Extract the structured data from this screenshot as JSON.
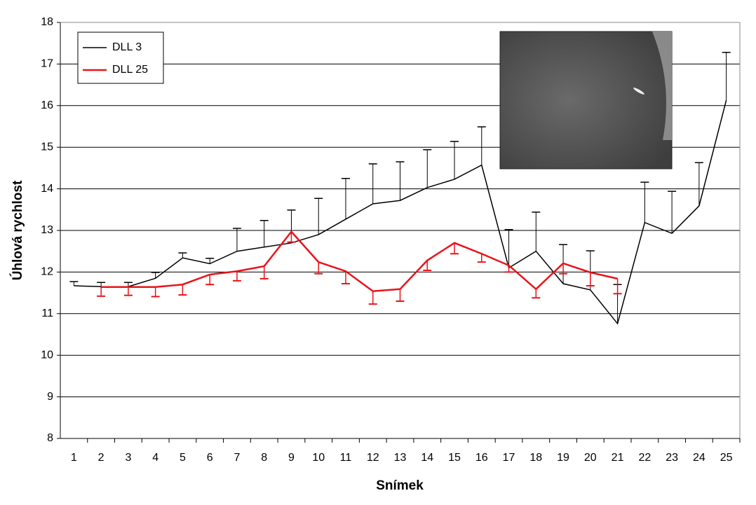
{
  "chart_data": {
    "type": "line",
    "xlabel": "Snímek",
    "ylabel": "Úhlová rychlost",
    "categories": [
      "1",
      "2",
      "3",
      "4",
      "5",
      "6",
      "7",
      "8",
      "9",
      "10",
      "11",
      "12",
      "13",
      "14",
      "15",
      "16",
      "17",
      "18",
      "19",
      "20",
      "21",
      "22",
      "23",
      "24",
      "25"
    ],
    "ylim": [
      8,
      18
    ],
    "yticks": [
      8,
      9,
      10,
      11,
      12,
      13,
      14,
      15,
      16,
      17,
      18
    ],
    "grid": true,
    "legend": "upper left",
    "series": [
      {
        "name": "DLL 3",
        "color": "#000000",
        "width": 1.5,
        "error_direction": "up",
        "values": [
          11.67,
          11.65,
          11.65,
          11.85,
          12.34,
          12.2,
          12.5,
          12.6,
          12.7,
          12.9,
          13.27,
          13.64,
          13.72,
          14.03,
          14.23,
          14.57,
          12.1,
          12.5,
          11.72,
          11.57,
          10.76,
          13.19,
          12.93,
          13.59,
          16.13
        ],
        "errors": [
          0.1,
          0.1,
          0.1,
          0.14,
          0.12,
          0.13,
          0.55,
          0.64,
          0.79,
          0.87,
          0.98,
          0.96,
          0.93,
          0.91,
          0.91,
          0.92,
          0.92,
          0.94,
          0.94,
          0.94,
          0.94,
          0.97,
          1.01,
          1.04,
          1.15
        ]
      },
      {
        "name": "DLL 25",
        "color": "#e8141b",
        "width": 2.5,
        "error_direction": "down",
        "values": [
          null,
          11.64,
          11.64,
          11.64,
          11.7,
          11.94,
          12.02,
          12.14,
          12.97,
          12.24,
          12.02,
          11.54,
          11.59,
          12.28,
          12.7,
          12.44,
          12.16,
          11.59,
          12.21,
          11.99,
          11.84,
          null,
          null,
          null,
          null
        ],
        "errors": [
          null,
          0.22,
          0.2,
          0.23,
          0.25,
          0.24,
          0.23,
          0.3,
          0.25,
          0.28,
          0.3,
          0.31,
          0.29,
          0.24,
          0.26,
          0.2,
          0.16,
          0.21,
          0.25,
          0.32,
          0.36,
          null,
          null,
          null,
          null
        ]
      }
    ]
  }
}
